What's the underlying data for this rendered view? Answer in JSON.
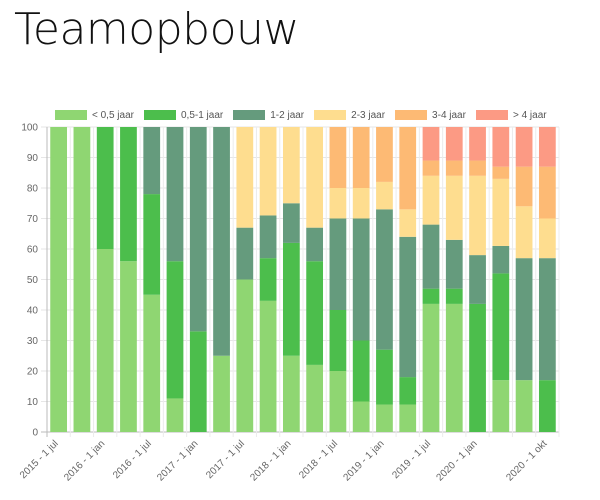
{
  "title": "Teamopbouw",
  "chart_data": {
    "type": "bar",
    "stacked": true,
    "ylim": [
      0,
      100
    ],
    "yticks": [
      0,
      10,
      20,
      30,
      40,
      50,
      60,
      70,
      80,
      90,
      100
    ],
    "grid": true,
    "legend_position": "top",
    "categories": [
      "2015 - 1 jul",
      "",
      "2016 - 1 jan",
      "",
      "2016 - 1 jul",
      "",
      "2017 - 1 jan",
      "",
      "2017 - 1 jul",
      "",
      "2018 - 1 jan",
      "",
      "2018 - 1 jul",
      "",
      "2019 - 1 jan",
      "",
      "2019 - 1 jul",
      "",
      "2020 - 1 jan",
      "",
      "",
      "2020 - 1 okt"
    ],
    "series": [
      {
        "name": "< 0,5 jaar",
        "color": "#8fd672",
        "values": [
          100,
          100,
          60,
          56,
          45,
          11,
          0,
          25,
          50,
          43,
          25,
          22,
          20,
          10,
          9,
          9,
          42,
          42,
          0,
          17,
          17,
          0
        ]
      },
      {
        "name": "0,5-1 jaar",
        "color": "#4cbe4c",
        "values": [
          0,
          0,
          40,
          44,
          33,
          45,
          33,
          0,
          0,
          14,
          37,
          34,
          20,
          20,
          18,
          9,
          5,
          5,
          42,
          35,
          0,
          17
        ]
      },
      {
        "name": "1-2 jaar",
        "color": "#659b7d",
        "values": [
          0,
          0,
          0,
          0,
          22,
          44,
          67,
          75,
          17,
          14,
          13,
          11,
          30,
          40,
          46,
          46,
          21,
          16,
          16,
          9,
          40,
          40
        ]
      },
      {
        "name": "2-3 jaar",
        "color": "#fedd8f",
        "values": [
          0,
          0,
          0,
          0,
          0,
          0,
          0,
          0,
          33,
          29,
          25,
          33,
          10,
          10,
          9,
          9,
          16,
          21,
          26,
          22,
          17,
          13
        ]
      },
      {
        "name": "3-4 jaar",
        "color": "#fdba74",
        "values": [
          0,
          0,
          0,
          0,
          0,
          0,
          0,
          0,
          0,
          0,
          0,
          0,
          20,
          20,
          18,
          27,
          5,
          5,
          5,
          4,
          13,
          17
        ]
      },
      {
        "name": "> 4 jaar",
        "color": "#fc9a84",
        "values": [
          0,
          0,
          0,
          0,
          0,
          0,
          0,
          0,
          0,
          0,
          0,
          0,
          0,
          0,
          0,
          0,
          11,
          11,
          11,
          13,
          13,
          13
        ]
      }
    ]
  }
}
